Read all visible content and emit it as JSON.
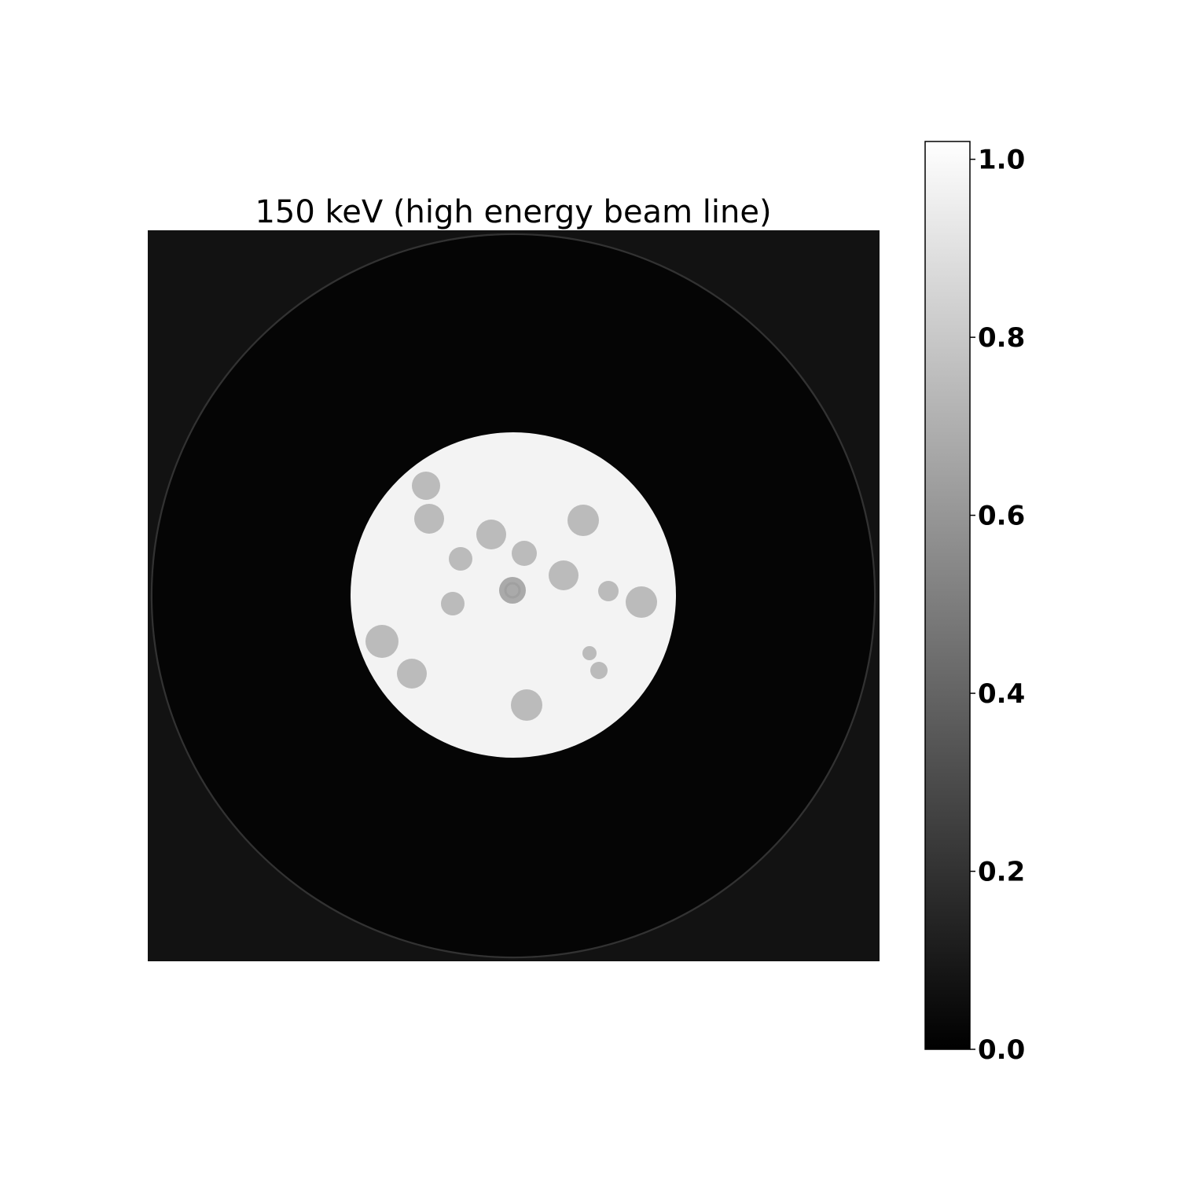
{
  "chart_data": {
    "type": "heatmap",
    "title": "150 keV (high energy beam line)",
    "colormap": "gray",
    "colorbar": {
      "vmin": 0.0,
      "vmax": 1.02,
      "ticks": [
        0.0,
        0.2,
        0.4,
        0.6,
        0.8,
        1.0
      ],
      "tick_labels": [
        "0.0",
        "0.2",
        "0.4",
        "0.6",
        "0.8",
        "1.0"
      ]
    },
    "background_value": 0.07,
    "outer_ring_value": 0.2,
    "container_value": 0.02,
    "matrix_value": 0.97,
    "inclusion_value": 0.75,
    "center_inclusion_value": 0.68,
    "inclusions_count": 18
  }
}
